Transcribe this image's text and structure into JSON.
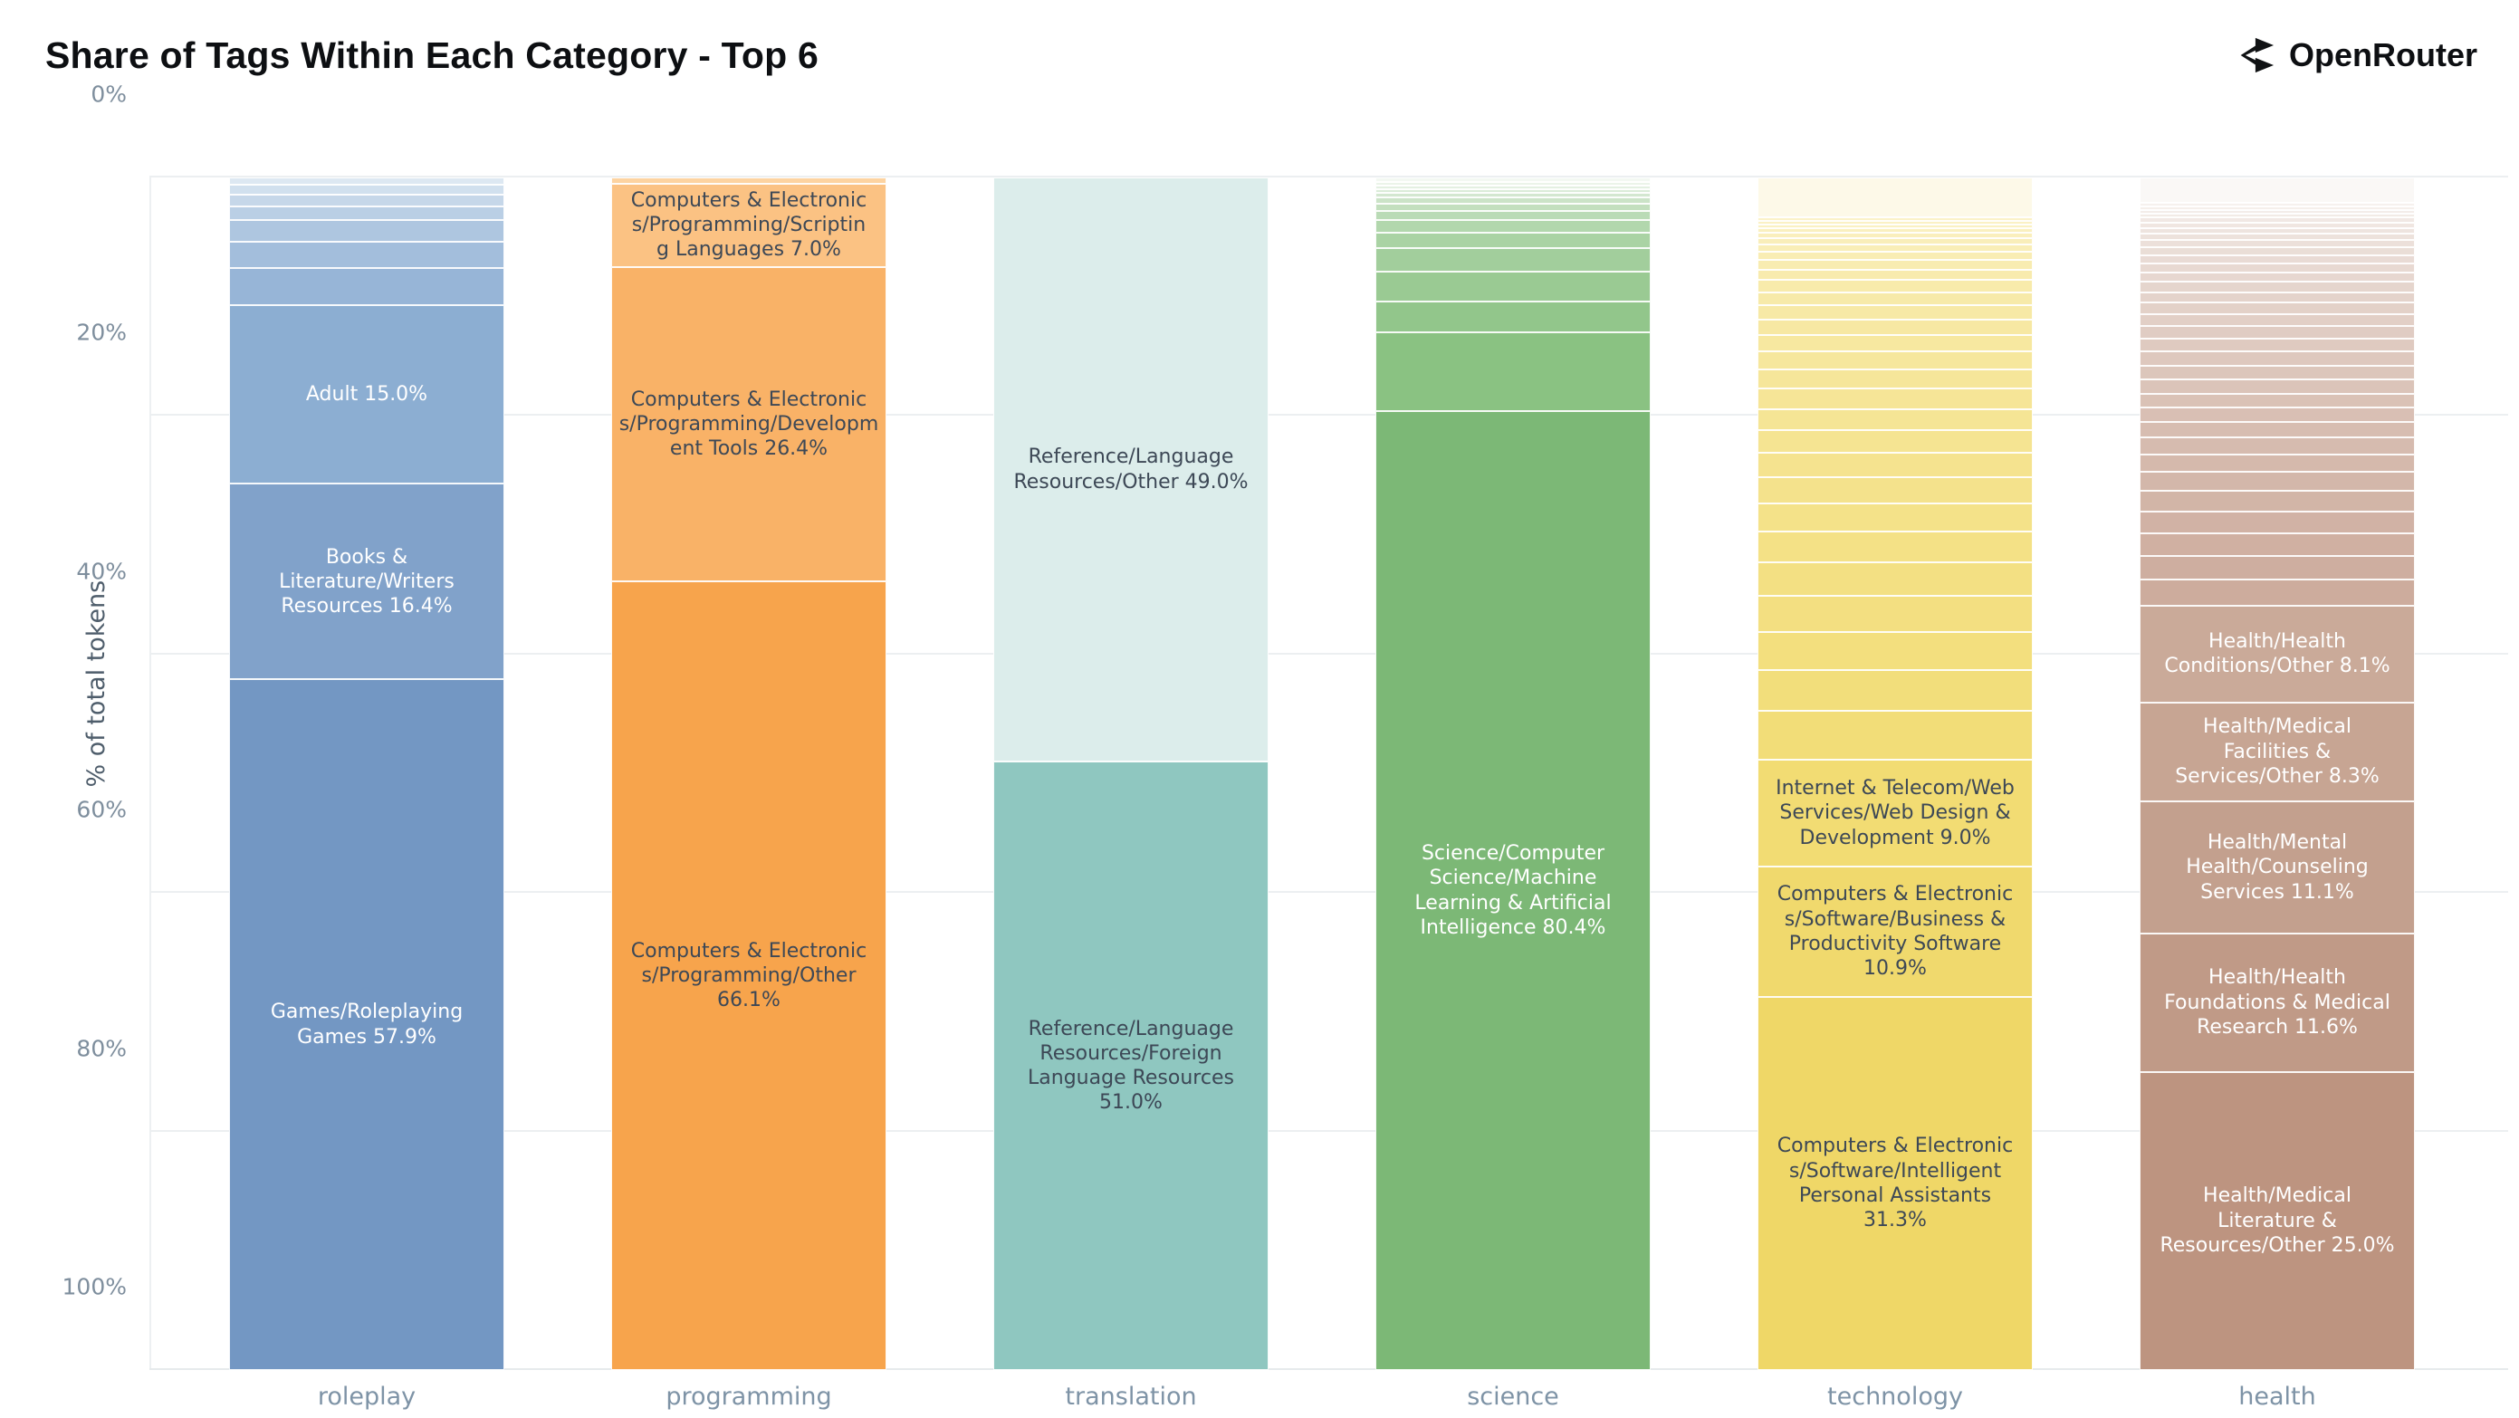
{
  "header": {
    "title": "Share of Tags Within Each Category - Top 6",
    "brand": "OpenRouter"
  },
  "axes": {
    "y_title": "% of total tokens",
    "y_ticks": [
      "0%",
      "20%",
      "40%",
      "60%",
      "80%",
      "100%"
    ]
  },
  "chart_data": {
    "type": "bar",
    "stacked": true,
    "title": "Share of Tags Within Each Category - Top 6",
    "xlabel": "",
    "ylabel": "% of total tokens",
    "ylim": [
      0,
      100
    ],
    "grid": true,
    "legend": false,
    "categories": [
      "roleplay",
      "programming",
      "translation",
      "science",
      "technology",
      "health"
    ],
    "bars": [
      {
        "category": "roleplay",
        "segments": [
          {
            "label": "Games/Roleplaying\nGames 57.9%",
            "value": 57.9,
            "color": "#7397c3",
            "text_color": "#ffffff"
          },
          {
            "label": "Books &\nLiterature/Writers\nResources 16.4%",
            "value": 16.4,
            "color": "#81a2ca",
            "text_color": "#ffffff"
          },
          {
            "label": "Adult 15.0%",
            "value": 15.0,
            "color": "#8caed2",
            "text_color": "#ffffff"
          }
        ],
        "others": {
          "values": [
            3.1,
            2.2,
            1.8,
            1.2,
            1.0,
            0.8,
            0.6
          ],
          "color_from": "#97b5d7",
          "color_to": "#dde8f2"
        }
      },
      {
        "category": "programming",
        "segments": [
          {
            "label": "Computers & Electronic\ns/Programming/Other\n66.1%",
            "value": 66.1,
            "color": "#f7a44c",
            "text_color": "#3d4856"
          },
          {
            "label": "Computers & Electronic\ns/Programming/Developm\nent Tools 26.4%",
            "value": 26.4,
            "color": "#f9b267",
            "text_color": "#3d4856"
          },
          {
            "label": "Computers & Electronic\ns/Programming/Scriptin\ng Languages 7.0%",
            "value": 7.0,
            "color": "#fbc283",
            "text_color": "#3d4856"
          }
        ],
        "others": {
          "values": [
            0.5
          ],
          "color_from": "#fdd3a0",
          "color_to": "#fdd3a0"
        }
      },
      {
        "category": "translation",
        "segments": [
          {
            "label": "Reference/Language\nResources/Foreign\nLanguage Resources\n51.0%",
            "value": 51.0,
            "color": "#8fc7c0",
            "text_color": "#3d4856"
          },
          {
            "label": "Reference/Language\nResources/Other 49.0%",
            "value": 49.0,
            "color": "#dcedeb",
            "text_color": "#3d4856"
          }
        ],
        "others": null
      },
      {
        "category": "science",
        "segments": [
          {
            "label": "Science/Computer\nScience/Machine\nLearning & Artificial\nIntelligence 80.4%",
            "value": 80.4,
            "color": "#7cb876",
            "text_color": "#ffffff"
          }
        ],
        "others": {
          "values": [
            6.6,
            2.6,
            2.5,
            2.0,
            1.3,
            1.0,
            0.8,
            0.6,
            0.5,
            0.4,
            0.3,
            0.3,
            0.35,
            0.35
          ],
          "color_from": "#8ac282",
          "color_to": "#f3f8f2"
        }
      },
      {
        "category": "technology",
        "segments": [
          {
            "label": "Computers & Electronic\ns/Software/Intelligent\nPersonal Assistants\n31.3%",
            "value": 31.3,
            "color": "#efd767",
            "text_color": "#3d4856"
          },
          {
            "label": "Computers & Electronic\ns/Software/Business &\nProductivity Software\n10.9%",
            "value": 10.9,
            "color": "#f0d96d",
            "text_color": "#3d4856"
          },
          {
            "label": "Internet & Telecom/Web\nServices/Web Design &\nDevelopment 9.0%",
            "value": 9.0,
            "color": "#f2dc73",
            "text_color": "#3d4856"
          }
        ],
        "others": {
          "values": [
            4.1,
            3.4,
            3.2,
            3.0,
            2.8,
            2.6,
            2.4,
            2.2,
            2.0,
            1.9,
            1.8,
            1.7,
            1.6,
            1.5,
            1.4,
            1.3,
            1.2,
            1.1,
            1.0,
            0.9,
            0.8,
            0.7,
            0.6,
            0.5,
            0.45,
            0.4,
            0.35,
            0.3,
            0.3
          ],
          "color_from": "#f2dd78",
          "color_to": "#fbf2c8",
          "top_block": {
            "value": 3.3,
            "color": "#fdf9e8"
          }
        }
      },
      {
        "category": "health",
        "segments": [
          {
            "label": "Health/Medical\nLiterature &\nResources/Other 25.0%",
            "value": 25.0,
            "color": "#bd9480",
            "text_color": "#ffffff"
          },
          {
            "label": "Health/Health\nFoundations & Medical\nResearch 11.6%",
            "value": 11.6,
            "color": "#c09a87",
            "text_color": "#ffffff"
          },
          {
            "label": "Health/Mental\nHealth/Counseling\nServices 11.1%",
            "value": 11.1,
            "color": "#c3a08e",
            "text_color": "#ffffff"
          },
          {
            "label": "Health/Medical\nFacilities &\nServices/Other 8.3%",
            "value": 8.3,
            "color": "#c7a593",
            "text_color": "#ffffff"
          },
          {
            "label": "Health/Health\nConditions/Other 8.1%",
            "value": 8.1,
            "color": "#caaa99",
            "text_color": "#ffffff"
          }
        ],
        "others": {
          "values": [
            2.2,
            2.0,
            1.9,
            1.8,
            1.7,
            1.6,
            1.5,
            1.4,
            1.3,
            1.2,
            1.2,
            1.2,
            1.15,
            1.15,
            1.1,
            1.05,
            1.0,
            0.95,
            0.9,
            0.85,
            0.8,
            0.75,
            0.7,
            0.65,
            0.6,
            0.55,
            0.5,
            0.45,
            0.4,
            0.35,
            0.3,
            0.3,
            0.3
          ],
          "color_from": "#cdac9d",
          "color_to": "#f6f1ee",
          "top_block": {
            "value": 2.1,
            "color": "#faf8f6"
          }
        }
      }
    ]
  }
}
